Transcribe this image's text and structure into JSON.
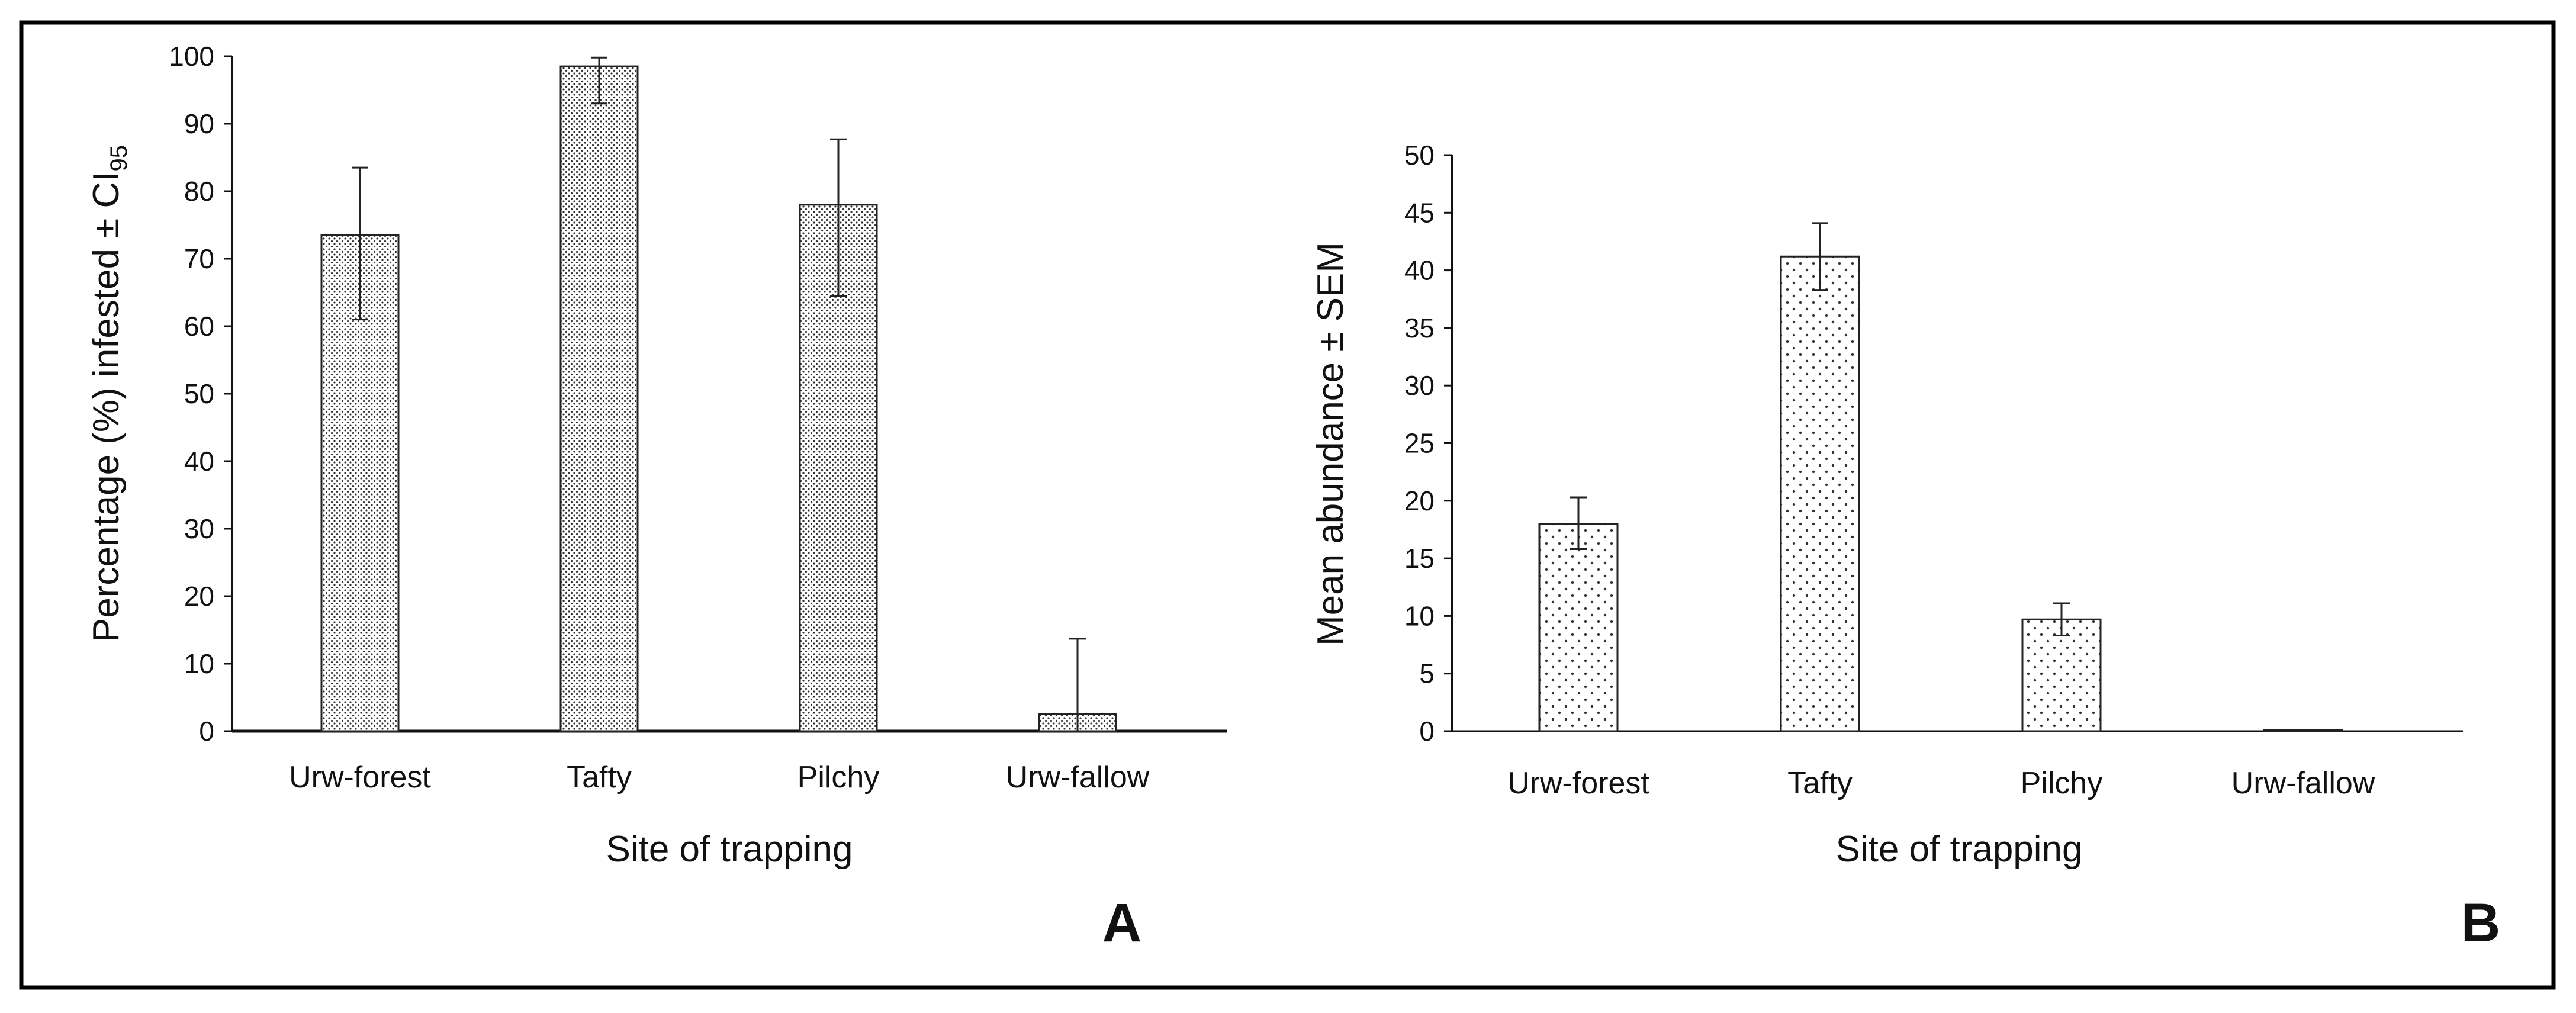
{
  "figure": {
    "border_color": "#000000",
    "background": "#ffffff"
  },
  "chart_data": [
    {
      "type": "bar",
      "panel_label": "A",
      "title": "",
      "xlabel": "Site of trapping",
      "ylabel": "Percentage (%) infested ± CI",
      "ylabel_subscript": "95",
      "categories": [
        "Urw-forest",
        "Tafty",
        "Pilchy",
        "Urw-fallow"
      ],
      "series": [
        {
          "name": "Percentage infested",
          "values": [
            73.5,
            98.5,
            78,
            2.5
          ],
          "err_low": [
            61,
            93,
            64.5,
            0
          ],
          "err_high": [
            83.5,
            99.8,
            87.7,
            13.7
          ]
        }
      ],
      "ylim": [
        0,
        100
      ],
      "yticks": [
        0,
        10,
        20,
        30,
        40,
        50,
        60,
        70,
        80,
        90,
        100
      ],
      "grid": false,
      "bar_pattern": "dense-dots"
    },
    {
      "type": "bar",
      "panel_label": "B",
      "title": "",
      "xlabel": "Site of trapping",
      "ylabel": "Mean abundance ± SEM",
      "categories": [
        "Urw-forest",
        "Tafty",
        "Pilchy",
        "Urw-fallow"
      ],
      "series": [
        {
          "name": "Mean abundance",
          "values": [
            18,
            41.2,
            9.7,
            0.1
          ],
          "err_low": [
            15.8,
            38.3,
            8.3,
            0.1
          ],
          "err_high": [
            20.3,
            44.1,
            11.1,
            0.1
          ]
        }
      ],
      "ylim": [
        0,
        50
      ],
      "yticks": [
        0,
        5,
        10,
        15,
        20,
        25,
        30,
        35,
        40,
        45,
        50
      ],
      "grid": false,
      "bar_pattern": "sparse-dots"
    }
  ]
}
